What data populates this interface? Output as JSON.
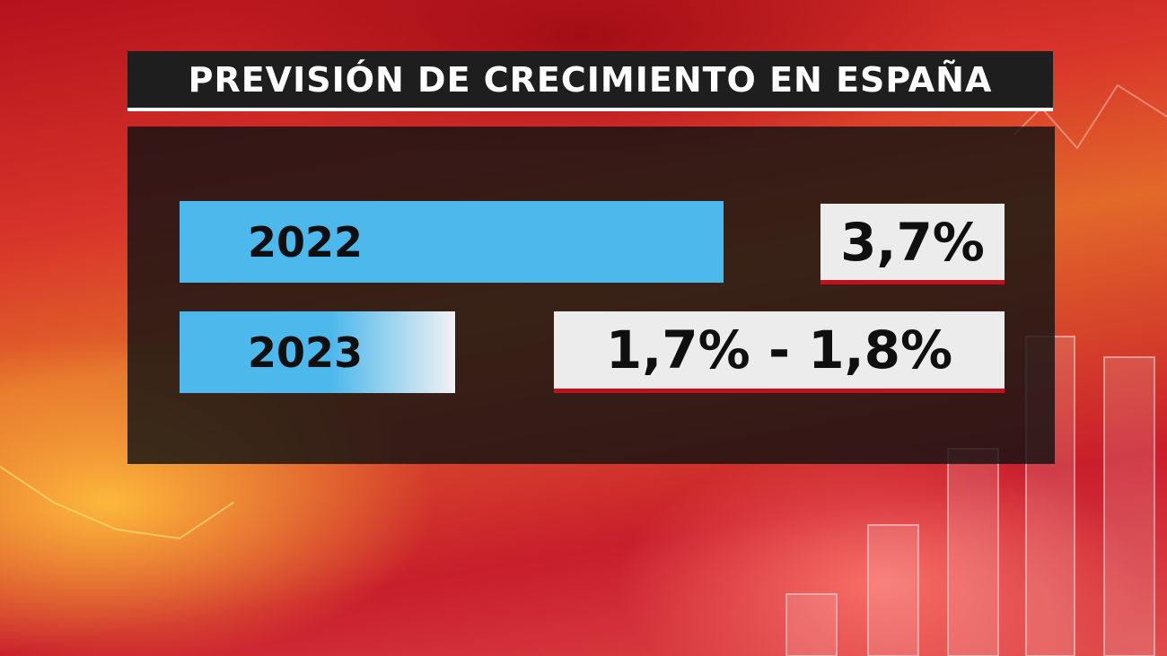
{
  "colors": {
    "bar_fill": "#4db8ec",
    "title_bg": "#1e1e1e",
    "panel_bg": "#121212",
    "value_box_bg": "#ececec",
    "value_underline": "#c0121e"
  },
  "title": "PREVISIÓN DE CRECIMIENTO EN ESPAÑA",
  "rows": [
    {
      "year": "2022",
      "value": "3,7%"
    },
    {
      "year": "2023",
      "value": "1,7% - 1,8%"
    }
  ],
  "chart_data": {
    "type": "bar",
    "title": "PREVISIÓN DE CRECIMIENTO EN ESPAÑA",
    "orientation": "horizontal",
    "categories": [
      "2022",
      "2023"
    ],
    "values": [
      3.7,
      1.75
    ],
    "value_labels": [
      "3,7%",
      "1,7% - 1,8%"
    ],
    "ranges": [
      null,
      [
        1.7,
        1.8
      ]
    ],
    "unit": "%",
    "xlabel": "",
    "ylabel": "",
    "grid": false,
    "legend": "none"
  }
}
